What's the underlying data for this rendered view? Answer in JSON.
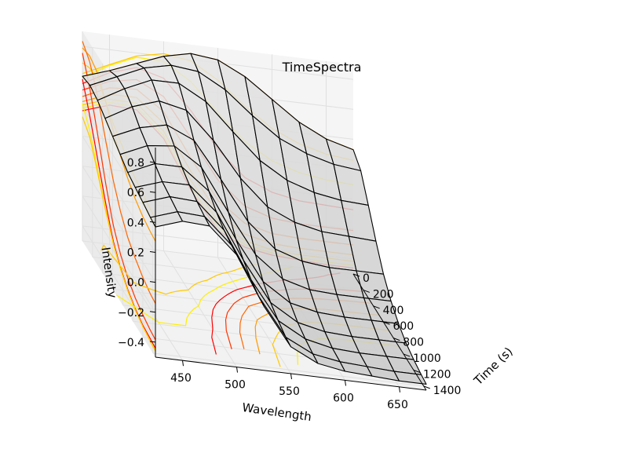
{
  "chart_data": {
    "type": "surface3d",
    "title": "TimeSpectra",
    "xlabel": "Wavelength",
    "ylabel": "Time (s)",
    "zlabel": "Intensity",
    "x_ticks": [
      450,
      500,
      550,
      600,
      650
    ],
    "y_ticks": [
      0,
      200,
      400,
      600,
      800,
      1000,
      1200,
      1400
    ],
    "z_ticks": [
      -0.4,
      -0.2,
      0.0,
      0.2,
      0.4,
      0.6,
      0.8
    ],
    "x_tick_labels": [
      "450",
      "500",
      "550",
      "600",
      "650"
    ],
    "y_tick_labels": [
      "0",
      "200",
      "400",
      "600",
      "800",
      "1000",
      "1200",
      "1400"
    ],
    "z_tick_labels": [
      "−0.4",
      "−0.2",
      "0.0",
      "0.2",
      "0.4",
      "0.6",
      "0.8"
    ],
    "xlim": [
      425,
      675
    ],
    "ylim": [
      0,
      1450
    ],
    "zlim": [
      -0.5,
      0.9
    ],
    "grid": true,
    "surface": {
      "wavelength": [
        425,
        450,
        475,
        500,
        525,
        550,
        575,
        600,
        625,
        650,
        675
      ],
      "time": [
        0,
        150,
        300,
        450,
        600,
        750,
        900,
        1050,
        1200,
        1350,
        1450
      ],
      "intensity": [
        [
          0.6,
          0.66,
          0.73,
          0.8,
          0.84,
          0.82,
          0.73,
          0.6,
          0.47,
          0.38,
          0.33
        ],
        [
          0.62,
          0.7,
          0.78,
          0.82,
          0.8,
          0.7,
          0.55,
          0.42,
          0.34,
          0.29,
          0.27
        ],
        [
          0.6,
          0.7,
          0.78,
          0.78,
          0.68,
          0.5,
          0.33,
          0.22,
          0.16,
          0.13,
          0.12
        ],
        [
          0.56,
          0.66,
          0.72,
          0.68,
          0.5,
          0.27,
          0.1,
          0.02,
          -0.02,
          -0.03,
          -0.04
        ],
        [
          0.52,
          0.6,
          0.64,
          0.56,
          0.32,
          0.06,
          -0.1,
          -0.16,
          -0.18,
          -0.18,
          -0.18
        ],
        [
          0.48,
          0.56,
          0.58,
          0.46,
          0.18,
          -0.08,
          -0.22,
          -0.27,
          -0.28,
          -0.28,
          -0.28
        ],
        [
          0.44,
          0.52,
          0.52,
          0.38,
          0.08,
          -0.18,
          -0.3,
          -0.34,
          -0.35,
          -0.35,
          -0.35
        ],
        [
          0.42,
          0.48,
          0.48,
          0.32,
          0.02,
          -0.24,
          -0.35,
          -0.39,
          -0.4,
          -0.4,
          -0.4
        ],
        [
          0.4,
          0.46,
          0.45,
          0.28,
          -0.03,
          -0.28,
          -0.38,
          -0.42,
          -0.43,
          -0.43,
          -0.43
        ],
        [
          0.38,
          0.44,
          0.43,
          0.26,
          -0.06,
          -0.31,
          -0.4,
          -0.43,
          -0.44,
          -0.45,
          -0.45
        ],
        [
          0.37,
          0.43,
          0.42,
          0.25,
          -0.07,
          -0.32,
          -0.41,
          -0.44,
          -0.45,
          -0.46,
          -0.46
        ]
      ]
    },
    "projection_colormap": [
      "#ffee00",
      "#ffc800",
      "#ff9900",
      "#ff6600",
      "#ff3300",
      "#ff0000"
    ],
    "surface_color": "#d9d9d9",
    "wire_color": "#000000"
  }
}
